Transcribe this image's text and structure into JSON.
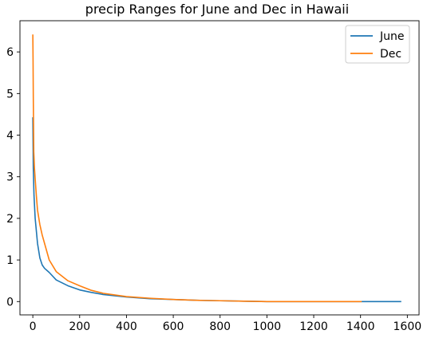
{
  "chart_data": {
    "type": "line",
    "title": "precip Ranges for June and Dec in Hawaii",
    "xlabel": "",
    "ylabel": "",
    "xlim": [
      -55,
      1650
    ],
    "ylim": [
      -0.32,
      6.75
    ],
    "xticks": [
      0,
      200,
      400,
      600,
      800,
      1000,
      1200,
      1400,
      1600
    ],
    "yticks": [
      0,
      1,
      2,
      3,
      4,
      5,
      6
    ],
    "grid": false,
    "legend_position": "upper right",
    "series": [
      {
        "name": "June",
        "color": "#1f77b4",
        "x": [
          0,
          2,
          5,
          10,
          15,
          20,
          30,
          40,
          50,
          70,
          100,
          150,
          200,
          250,
          300,
          400,
          500,
          600,
          700,
          800,
          900,
          1000,
          1200,
          1400,
          1574
        ],
        "y": [
          4.43,
          3.2,
          2.55,
          2.0,
          1.7,
          1.4,
          1.05,
          0.88,
          0.8,
          0.7,
          0.52,
          0.38,
          0.28,
          0.22,
          0.17,
          0.11,
          0.07,
          0.05,
          0.03,
          0.02,
          0.01,
          0.0,
          0.0,
          0.0,
          0.0
        ]
      },
      {
        "name": "Dec",
        "color": "#ff7f0e",
        "x": [
          0,
          1,
          2,
          4,
          7,
          10,
          15,
          20,
          30,
          40,
          50,
          70,
          100,
          150,
          200,
          250,
          300,
          400,
          500,
          600,
          700,
          800,
          900,
          1000,
          1200,
          1405
        ],
        "y": [
          6.42,
          5.8,
          4.9,
          3.6,
          3.2,
          2.95,
          2.55,
          2.2,
          1.85,
          1.6,
          1.4,
          1.0,
          0.72,
          0.5,
          0.38,
          0.27,
          0.2,
          0.12,
          0.08,
          0.05,
          0.03,
          0.02,
          0.01,
          0.0,
          0.0,
          0.0
        ]
      }
    ]
  }
}
